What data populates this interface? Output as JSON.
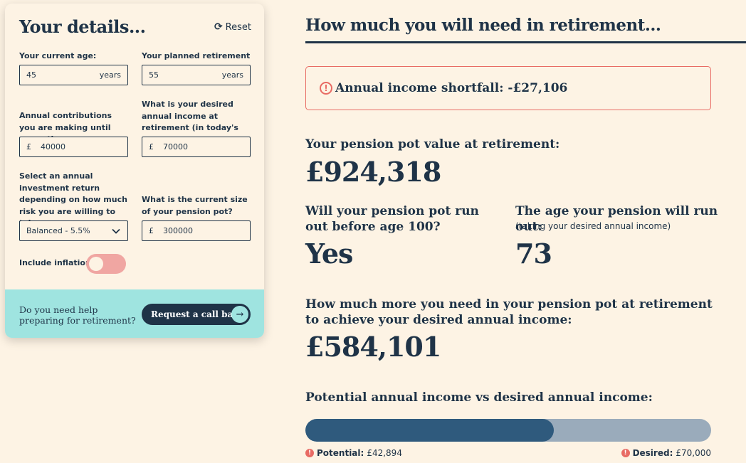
{
  "details": {
    "title": "Your details...",
    "reset_label": "Reset",
    "current_age": {
      "label": "Your current age:",
      "value": "45",
      "suffix": "years"
    },
    "retirement_age": {
      "label": "Your planned retirement age:",
      "value": "55",
      "suffix": "years"
    },
    "contributions": {
      "label": "Annual contributions you are making until you retire:",
      "prefix": "£",
      "value": "40000"
    },
    "desired_income": {
      "label": "What is your desired annual income at retirement (in today's money):",
      "prefix": "£",
      "value": "70000"
    },
    "investment_return": {
      "label": "Select an annual investment return depending on how much risk you are willing to take:",
      "value": "Balanced - 5.5%"
    },
    "pension_pot": {
      "label": "What is the current size of your pension pot?",
      "prefix": "£",
      "value": "300000"
    },
    "inflation_label": "Include inflation",
    "inflation_on": false
  },
  "help": {
    "text": "Do you need help preparing for retirement?",
    "button_label": "Request a call back"
  },
  "results": {
    "title": "How much you will need in retirement...",
    "shortfall": "Annual income shortfall: -£27,106",
    "pot_label": "Your pension pot value at retirement:",
    "pot_value": "£924,318",
    "run_out_label": "Will your pension pot run out before age 100?",
    "run_out_value": "Yes",
    "run_out_age_label": "The age your pension will run out:",
    "run_out_age_note": "(taking your desired annual income)",
    "run_out_age_value": "73",
    "more_needed_label": "How much more you need in your pension pot at retirement to achieve your desired annual income:",
    "more_needed_value": "£584,101",
    "comparison_label": "Potential annual income vs desired annual income:",
    "potential_label": "Potential:",
    "potential_value": "£42,894",
    "desired_label": "Desired:",
    "desired_value": "£70,000",
    "potential_fraction": 0.6128
  },
  "colors": {
    "navy": "#1f3347",
    "background": "#fdf3e4",
    "alert": "#e86b64",
    "teal": "#9fe4e0",
    "bar_fill": "#2f5a7d",
    "bar_track": "#9aabbb",
    "toggle_off": "#f0a6a2"
  },
  "icons": {
    "reset": "refresh-icon",
    "alert": "exclamation-circle-icon",
    "chevron": "chevron-down-icon",
    "arrow": "arrow-right-icon"
  }
}
